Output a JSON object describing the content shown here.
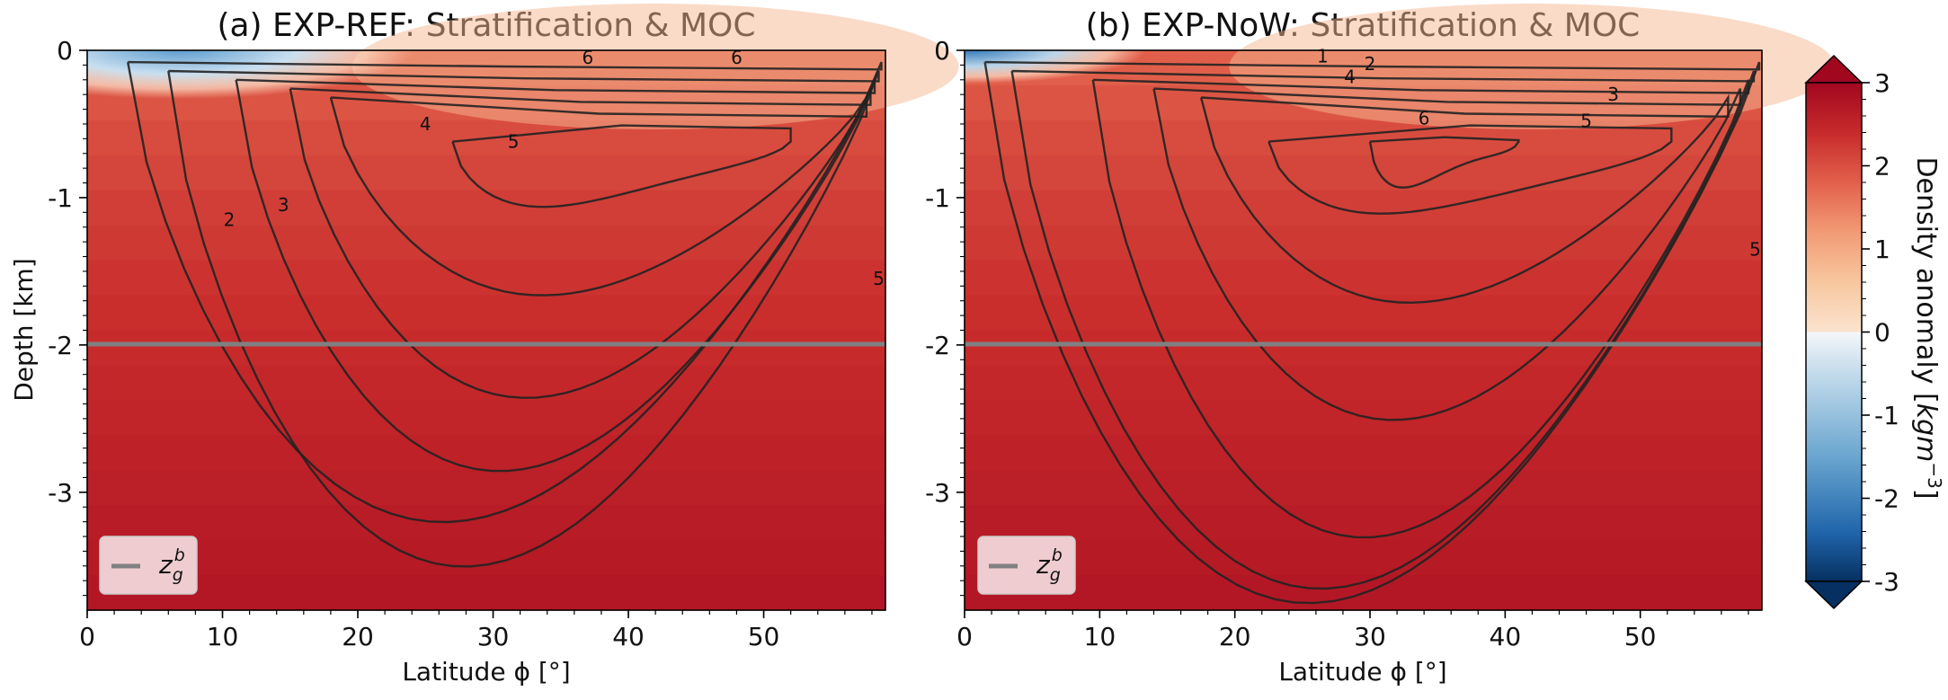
{
  "chart_data": [
    {
      "panel": "a",
      "type": "contour",
      "title": "(a)  EXP-REF: Stratification & MOC",
      "xlabel": "Latitude ϕ [°]",
      "ylabel": "Depth [km]",
      "xlim": [
        0,
        59
      ],
      "ylim": [
        -3.8,
        0
      ],
      "xticks": [
        0,
        10,
        20,
        30,
        40,
        50
      ],
      "yticks": [
        0,
        -1,
        -2,
        -3
      ],
      "ytick_labels": [
        "0",
        "-1",
        "-2",
        "-3"
      ],
      "contour_levels": [
        {
          "level": 1,
          "label": "",
          "lat0": 3,
          "lat1": 58.7,
          "dmax": 3.2
        },
        {
          "level": 2,
          "label": "2",
          "lat0": 6,
          "lat1": 58.5,
          "dmax": 3.5
        },
        {
          "level": 3,
          "label": "3",
          "lat0": 11,
          "lat1": 58.2,
          "dmax": 2.85
        },
        {
          "level": 4,
          "label": "4",
          "lat0": 15,
          "lat1": 57.9,
          "dmax": 2.35
        },
        {
          "level": 5,
          "label": "5",
          "lat0": 18,
          "lat1": 57.6,
          "dmax": 1.65
        },
        {
          "level": 6,
          "label": "",
          "lat0": 27,
          "lat1": 52,
          "dmax": 1.0
        }
      ],
      "contour_labels": [
        {
          "text": "2",
          "lat": 10.5,
          "depth": -1.15
        },
        {
          "text": "3",
          "lat": 14.5,
          "depth": -1.05
        },
        {
          "text": "4",
          "lat": 25,
          "depth": -0.5
        },
        {
          "text": "5",
          "lat": 31.5,
          "depth": -0.62
        },
        {
          "text": "5",
          "lat": 58.5,
          "depth": -1.55
        },
        {
          "text": "6",
          "lat": 37,
          "depth": -0.05
        },
        {
          "text": "6",
          "lat": 48,
          "depth": -0.05
        }
      ],
      "reference_line": {
        "label": "z_g^b",
        "depth": -2.0,
        "color": "#808080"
      },
      "legend": {
        "position": "lower-left",
        "entries": [
          "z_g^b"
        ]
      }
    },
    {
      "panel": "b",
      "type": "contour",
      "title": "(b)  EXP-NoW: Stratification & MOC",
      "xlabel": "Latitude ϕ [°]",
      "ylabel": "",
      "xlim": [
        0,
        59
      ],
      "ylim": [
        -3.8,
        0
      ],
      "xticks": [
        0,
        10,
        20,
        30,
        40,
        50
      ],
      "yticks": [
        0,
        -1,
        -2,
        -3
      ],
      "ytick_labels": [
        "0",
        "-1",
        "-2",
        "-3"
      ],
      "contour_levels": [
        {
          "level": 1,
          "label": "1",
          "lat0": 1.5,
          "lat1": 58.8,
          "dmax": 3.75
        },
        {
          "level": 2,
          "label": "2",
          "lat0": 3.5,
          "lat1": 58.4,
          "dmax": 3.65
        },
        {
          "level": 3,
          "label": "3",
          "lat0": 9.5,
          "lat1": 58.0,
          "dmax": 3.3
        },
        {
          "level": 4,
          "label": "4",
          "lat0": 14,
          "lat1": 57.4,
          "dmax": 2.5
        },
        {
          "level": 5,
          "label": "5",
          "lat0": 17.5,
          "lat1": 56.5,
          "dmax": 1.7
        },
        {
          "level": 6,
          "label": "6",
          "lat0": 22.5,
          "lat1": 52.3,
          "dmax": 1.05
        },
        {
          "level": 7,
          "label": "",
          "lat0": 30,
          "lat1": 41,
          "dmax": 0.85
        }
      ],
      "contour_labels": [
        {
          "text": "1",
          "lat": 26.5,
          "depth": -0.04
        },
        {
          "text": "2",
          "lat": 30,
          "depth": -0.09
        },
        {
          "text": "4",
          "lat": 28.5,
          "depth": -0.18
        },
        {
          "text": "6",
          "lat": 34,
          "depth": -0.46
        },
        {
          "text": "3",
          "lat": 48,
          "depth": -0.3
        },
        {
          "text": "5",
          "lat": 46,
          "depth": -0.48
        },
        {
          "text": "5",
          "lat": 58.5,
          "depth": -1.35
        }
      ],
      "reference_line": {
        "label": "z_g^b",
        "depth": -2.0,
        "color": "#808080"
      },
      "legend": {
        "position": "lower-left",
        "entries": [
          "z_g^b"
        ]
      }
    }
  ],
  "colorbar": {
    "label": "Density anomaly [kgm⁻³]",
    "range": [
      -3,
      3
    ],
    "ticks": [
      "3",
      "2",
      "1",
      "0",
      "-1",
      "-2",
      "-3"
    ],
    "colormap": "RdBu_r",
    "extend": "both"
  }
}
